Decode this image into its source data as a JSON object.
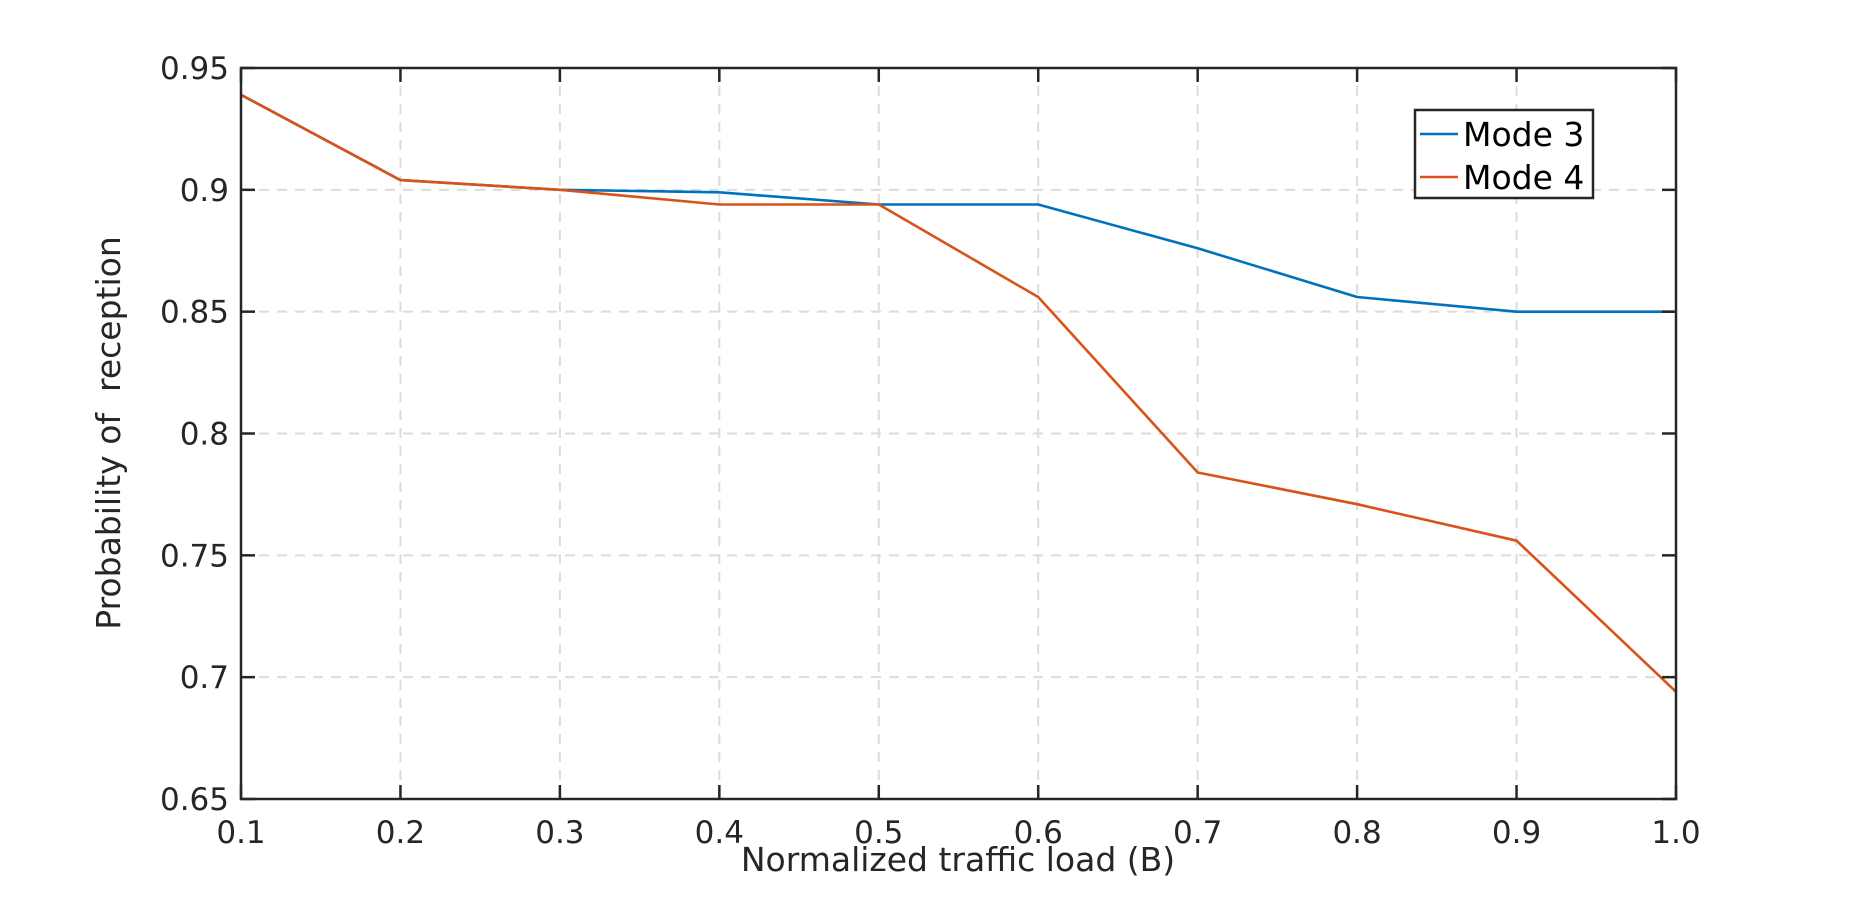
{
  "chart_data": {
    "type": "line",
    "title": "",
    "xlabel": "Normalized traffic load (B)",
    "ylabel": "Probability of  reception",
    "x": [
      0.1,
      0.2,
      0.3,
      0.4,
      0.5,
      0.6,
      0.7,
      0.8,
      0.9,
      1.0
    ],
    "xlim": [
      0.1,
      1.0
    ],
    "ylim": [
      0.65,
      0.95
    ],
    "xticks": [
      0.1,
      0.2,
      0.3,
      0.4,
      0.5,
      0.6,
      0.7,
      0.8,
      0.9,
      1.0
    ],
    "xtick_labels": [
      "0.1",
      "0.2",
      "0.3",
      "0.4",
      "0.5",
      "0.6",
      "0.7",
      "0.8",
      "0.9",
      "1.0"
    ],
    "yticks": [
      0.65,
      0.7,
      0.75,
      0.8,
      0.85,
      0.9,
      0.95
    ],
    "ytick_labels": [
      "0.65",
      "0.7",
      "0.75",
      "0.8",
      "0.85",
      "0.9",
      "0.95"
    ],
    "grid": true,
    "legend_position": "upper right",
    "series": [
      {
        "name": "Mode 3",
        "color": "#0072BD",
        "values": [
          0.939,
          0.904,
          0.9,
          0.899,
          0.894,
          0.894,
          0.876,
          0.856,
          0.85,
          0.85
        ]
      },
      {
        "name": "Mode 4",
        "color": "#D95319",
        "values": [
          0.939,
          0.904,
          0.9,
          0.894,
          0.894,
          0.856,
          0.784,
          0.771,
          0.756,
          0.694
        ]
      }
    ]
  },
  "colors": {
    "axis": "#262626",
    "grid": "#DCDCDC",
    "background": "#FFFFFF"
  }
}
